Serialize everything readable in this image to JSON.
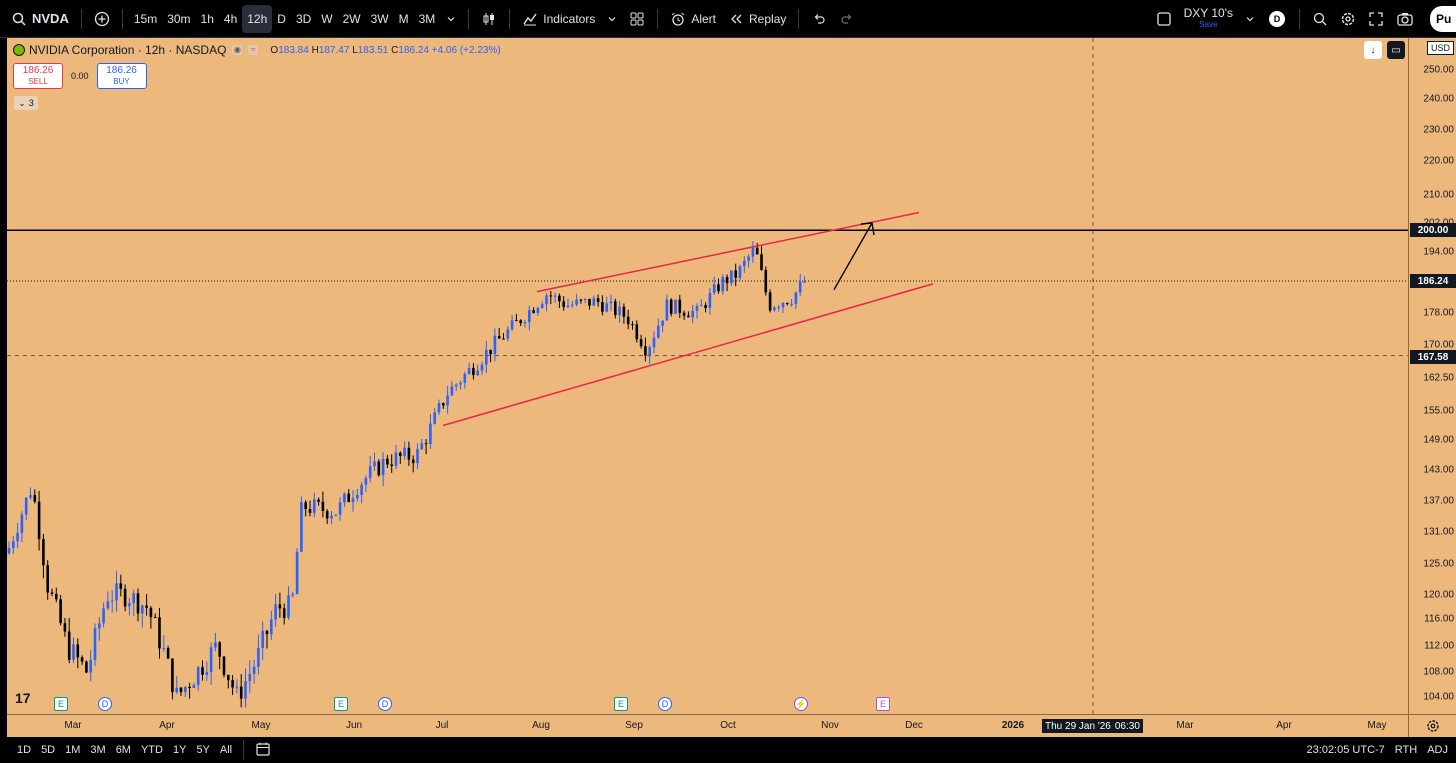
{
  "toolbar": {
    "symbol": "NVDA",
    "timeframes": [
      "15m",
      "30m",
      "1h",
      "4h",
      "12h",
      "D",
      "3D",
      "W",
      "2W",
      "3W",
      "M",
      "3M"
    ],
    "active_timeframe": "12h",
    "indicators_label": "Indicators",
    "alert_label": "Alert",
    "replay_label": "Replay",
    "compare_symbol": "DXY 10's",
    "compare_sub": "Save",
    "avatar_letter": "D",
    "publish_label": "Pu"
  },
  "legend": {
    "title": "NVIDIA Corporation · 12h · NASDAQ",
    "o_label": "O",
    "o": "183.84",
    "h_label": "H",
    "h": "187.47",
    "l_label": "L",
    "l": "183.51",
    "c_label": "C",
    "c": "186.24",
    "change": "+4.06 (+2.23%)"
  },
  "trade": {
    "sell_price": "186.26",
    "sell_label": "SELL",
    "spread": "0.00",
    "buy_price": "186.26",
    "buy_label": "BUY",
    "collapse_count": "3"
  },
  "price_axis": {
    "currency": "USD",
    "ticks": [
      "250.00",
      "240.00",
      "230.00",
      "220.00",
      "210.00",
      "202.00",
      "194.00",
      "186.24",
      "178.00",
      "170.00",
      "162.50",
      "155.00",
      "149.00",
      "143.00",
      "137.00",
      "131.00",
      "125.00",
      "120.00",
      "116.00",
      "112.00",
      "108.00",
      "104.00"
    ],
    "current_price": "186.24",
    "level_price": "200.00",
    "crosshair_price": "167.58"
  },
  "time_axis": {
    "labels": [
      "Mar",
      "Apr",
      "May",
      "Jun",
      "Jul",
      "Aug",
      "Sep",
      "Oct",
      "Nov",
      "Dec",
      "2026",
      "Mar",
      "Apr",
      "May"
    ],
    "crosshair_date": "Thu 29 Jan '26",
    "crosshair_time": "06:30"
  },
  "events": {
    "earnings_label": "E",
    "dividend_label": "D"
  },
  "bottom_bar": {
    "ranges": [
      "1D",
      "5D",
      "1M",
      "3M",
      "6M",
      "YTD",
      "1Y",
      "5Y",
      "All"
    ],
    "clock": "23:02:05 UTC-7",
    "session": "RTH",
    "adj": "ADJ"
  },
  "colors": {
    "background": "#edb87c",
    "up": "#2962ff",
    "down": "#000000",
    "channel": "#e5264a",
    "level": "#000000"
  },
  "chart_data": {
    "type": "candlestick",
    "symbol": "NVDA",
    "interval": "12h",
    "ylim": [
      100,
      255
    ],
    "closes_approx": [
      {
        "month": "Mar",
        "value": 118
      },
      {
        "month": "Apr",
        "value": 105
      },
      {
        "month": "May",
        "value": 135
      },
      {
        "month": "Jun",
        "value": 157
      },
      {
        "month": "Jul",
        "value": 177
      },
      {
        "month": "Aug",
        "value": 174
      },
      {
        "month": "Sep",
        "value": 186
      },
      {
        "month": "Oct",
        "value": 186.24
      }
    ],
    "annotations": {
      "horizontal_level": 200.0,
      "rising_wedge_upper": [
        [
          181,
          203
        ]
      ],
      "rising_wedge_lower": [
        [
          152,
          183
        ]
      ],
      "arrow_target": 202
    }
  }
}
